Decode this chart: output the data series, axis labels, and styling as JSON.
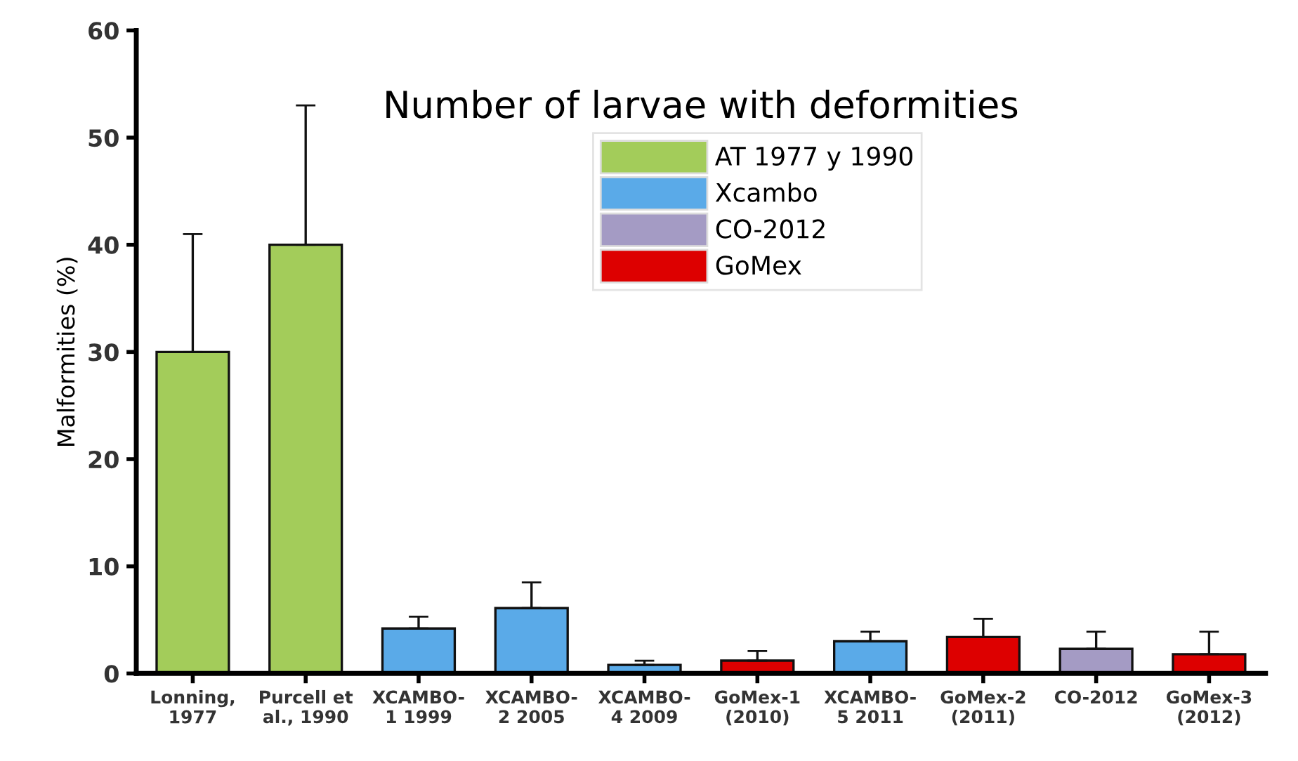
{
  "chart_data": {
    "type": "bar",
    "title": "Number of larvae with deformities",
    "ylabel": "Malformities (%)",
    "categories": [
      "Lonning,\n1977",
      "Purcell et\nal., 1990",
      "XCAMBO-\n1 1999",
      "XCAMBO-\n2 2005",
      "XCAMBO-\n4 2009",
      "GoMex-1\n(2010)",
      "XCAMBO-\n5 2011",
      "GoMex-2\n(2011)",
      "CO-2012",
      "GoMex-3\n(2012)"
    ],
    "series": [
      {
        "name": "AT 1977 y 1990",
        "color": "#a3cc5a",
        "values": [
          30,
          40,
          null,
          null,
          null,
          null,
          null,
          null,
          null,
          null
        ],
        "errors": [
          11,
          13,
          null,
          null,
          null,
          null,
          null,
          null,
          null,
          null
        ]
      },
      {
        "name": "Xcambo",
        "color": "#5aaae8",
        "values": [
          null,
          null,
          4.2,
          6.1,
          0.8,
          null,
          3.0,
          null,
          null,
          null
        ],
        "errors": [
          null,
          null,
          1.1,
          2.4,
          0.4,
          null,
          0.9,
          null,
          null,
          null
        ]
      },
      {
        "name": "CO-2012",
        "color": "#a49bc4",
        "values": [
          null,
          null,
          null,
          null,
          null,
          null,
          null,
          null,
          2.3,
          null
        ],
        "errors": [
          null,
          null,
          null,
          null,
          null,
          null,
          null,
          null,
          1.6,
          null
        ]
      },
      {
        "name": "GoMex",
        "color": "#dd0000",
        "values": [
          null,
          null,
          null,
          null,
          null,
          1.2,
          null,
          3.4,
          null,
          1.8
        ],
        "errors": [
          null,
          null,
          null,
          null,
          null,
          0.9,
          null,
          1.7,
          null,
          2.1
        ]
      }
    ],
    "ylim": [
      0,
      60
    ],
    "yticks": [
      0,
      10,
      20,
      30,
      40,
      50,
      60
    ],
    "grid": false,
    "legend": "top"
  }
}
